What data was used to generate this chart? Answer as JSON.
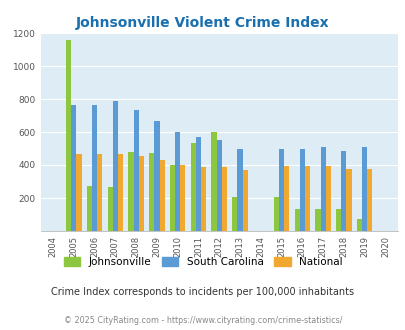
{
  "title": "Johnsonville Violent Crime Index",
  "years": [
    "2004",
    "2005",
    "2006",
    "2007",
    "2008",
    "2009",
    "2010",
    "2011",
    "2012",
    "2013",
    "2014",
    "2015",
    "2016",
    "2017",
    "2018",
    "2019",
    "2020"
  ],
  "johnsonville": [
    0,
    1155,
    270,
    268,
    480,
    475,
    400,
    535,
    597,
    205,
    0,
    205,
    135,
    135,
    135,
    72,
    0
  ],
  "south_carolina": [
    0,
    762,
    762,
    790,
    733,
    668,
    597,
    567,
    553,
    497,
    0,
    500,
    500,
    508,
    487,
    508,
    0
  ],
  "national": [
    0,
    469,
    468,
    467,
    455,
    432,
    400,
    387,
    387,
    370,
    0,
    391,
    395,
    396,
    375,
    374,
    0
  ],
  "color_johnsonville": "#8dc63f",
  "color_sc": "#5b9bd5",
  "color_national": "#f0a830",
  "bg_color": "#deedf5",
  "title_color": "#1a6faf",
  "ylim": [
    0,
    1200
  ],
  "yticks": [
    0,
    200,
    400,
    600,
    800,
    1000,
    1200
  ],
  "subtitle": "Crime Index corresponds to incidents per 100,000 inhabitants",
  "footer": "© 2025 CityRating.com - https://www.cityrating.com/crime-statistics/",
  "legend_labels": [
    "Johnsonville",
    "South Carolina",
    "National"
  ]
}
